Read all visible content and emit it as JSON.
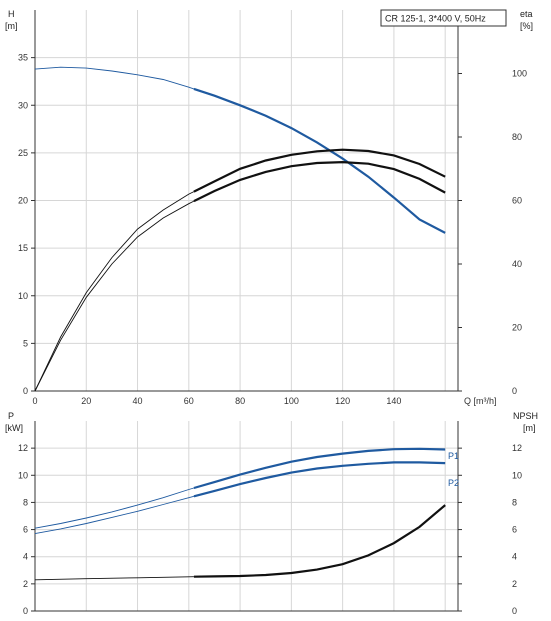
{
  "chart_data": [
    {
      "type": "line",
      "title": "CR 125-1, 3*400 V, 50Hz",
      "xlabel": "Q [m³/h]",
      "ylabel_left": [
        "H",
        "[m]"
      ],
      "ylabel_right": [
        "eta",
        "[%]"
      ],
      "xlim": [
        0,
        160
      ],
      "ylim_left": [
        0,
        40
      ],
      "ylim_right": [
        0,
        120
      ],
      "x_ticks": [
        0,
        20,
        40,
        60,
        80,
        100,
        120,
        140
      ],
      "left_ticks": [
        0,
        5,
        10,
        15,
        20,
        25,
        30,
        35
      ],
      "right_ticks": [
        0,
        20,
        40,
        60,
        80,
        100
      ],
      "grid": true,
      "operating_range_start": 62,
      "series": [
        {
          "axis": "left",
          "color": "#1f5aa0",
          "x": [
            0,
            10,
            20,
            30,
            40,
            50,
            60,
            70,
            80,
            90,
            100,
            110,
            120,
            130,
            140,
            150,
            160
          ],
          "y": [
            33.8,
            34.0,
            33.9,
            33.6,
            33.2,
            32.7,
            31.9,
            31.0,
            30.0,
            28.9,
            27.6,
            26.1,
            24.4,
            22.5,
            20.3,
            18.0,
            16.6
          ]
        },
        {
          "axis": "right",
          "color": "#111111",
          "x": [
            0,
            10,
            20,
            30,
            40,
            50,
            60,
            70,
            80,
            90,
            100,
            110,
            120,
            130,
            140,
            150,
            160
          ],
          "y": [
            0,
            17,
            31,
            42,
            51,
            57,
            62,
            66,
            70,
            72.6,
            74.4,
            75.5,
            76.0,
            75.6,
            74.2,
            71.5,
            67.5
          ]
        },
        {
          "axis": "right",
          "color": "#111111",
          "x": [
            0,
            10,
            20,
            30,
            40,
            50,
            60,
            70,
            80,
            90,
            100,
            110,
            120,
            130,
            140,
            150,
            160
          ],
          "y": [
            0,
            16,
            29.5,
            40,
            48.5,
            54.5,
            59,
            63,
            66.5,
            69,
            70.8,
            71.8,
            72.1,
            71.6,
            69.9,
            66.8,
            62.5
          ]
        }
      ]
    },
    {
      "type": "line",
      "ylabel_left": [
        "P",
        "[kW]"
      ],
      "ylabel_right": [
        "NPSH",
        "[m]"
      ],
      "xlim": [
        0,
        160
      ],
      "ylim_left": [
        0,
        14
      ],
      "ylim_right": [
        0,
        14
      ],
      "left_ticks": [
        0,
        2,
        4,
        6,
        8,
        10,
        12
      ],
      "right_ticks": [
        0,
        2,
        4,
        6,
        8,
        10,
        12
      ],
      "grid": true,
      "operating_range_start": 62,
      "series": [
        {
          "name": "P1",
          "axis": "left",
          "color": "#1f5aa0",
          "x": [
            0,
            10,
            20,
            30,
            40,
            50,
            60,
            70,
            80,
            90,
            100,
            110,
            120,
            130,
            140,
            150,
            160
          ],
          "y": [
            6.1,
            6.45,
            6.85,
            7.3,
            7.8,
            8.35,
            8.95,
            9.5,
            10.05,
            10.55,
            11.0,
            11.35,
            11.6,
            11.8,
            11.92,
            11.95,
            11.9
          ]
        },
        {
          "name": "P2",
          "axis": "left",
          "color": "#1f5aa0",
          "x": [
            0,
            10,
            20,
            30,
            40,
            50,
            60,
            70,
            80,
            90,
            100,
            110,
            120,
            130,
            140,
            150,
            160
          ],
          "y": [
            5.7,
            6.05,
            6.45,
            6.9,
            7.35,
            7.85,
            8.35,
            8.85,
            9.35,
            9.8,
            10.2,
            10.5,
            10.7,
            10.85,
            10.95,
            10.95,
            10.9
          ]
        },
        {
          "axis": "right",
          "color": "#111111",
          "x": [
            0,
            20,
            40,
            60,
            70,
            80,
            90,
            100,
            110,
            120,
            130,
            140,
            150,
            160
          ],
          "y": [
            2.3,
            2.38,
            2.45,
            2.52,
            2.55,
            2.58,
            2.65,
            2.8,
            3.05,
            3.45,
            4.1,
            5.0,
            6.2,
            7.8
          ]
        }
      ]
    }
  ]
}
